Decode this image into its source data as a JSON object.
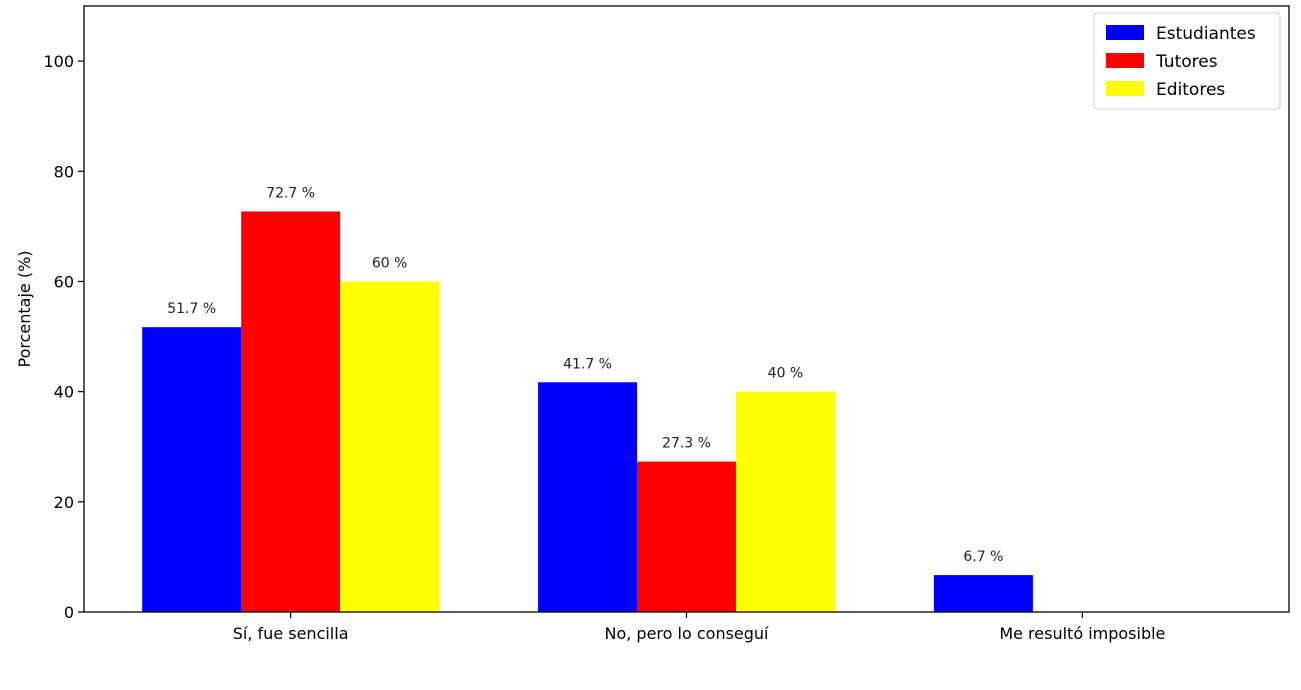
{
  "chart_data": {
    "type": "bar",
    "title": "",
    "xlabel": "",
    "ylabel": "Porcentaje (%)",
    "ylim": [
      0,
      110
    ],
    "yticks": [
      0,
      20,
      40,
      60,
      80,
      100
    ],
    "grid": false,
    "legend_position": "top-right",
    "categories": [
      "Sí, fue sencilla",
      "No, pero lo conseguí",
      "Me resultó imposible"
    ],
    "series": [
      {
        "name": "Estudiantes",
        "color": "#0000ff",
        "values": [
          51.7,
          41.7,
          6.7
        ],
        "labels": [
          "51.7 %",
          "41.7 %",
          "6.7 %"
        ]
      },
      {
        "name": "Tutores",
        "color": "#ff0000",
        "values": [
          72.7,
          27.3,
          0
        ],
        "labels": [
          "72.7 %",
          "27.3 %",
          ""
        ]
      },
      {
        "name": "Editores",
        "color": "#ffff00",
        "values": [
          60,
          40,
          0
        ],
        "labels": [
          "60 %",
          "40 %",
          ""
        ]
      }
    ]
  }
}
